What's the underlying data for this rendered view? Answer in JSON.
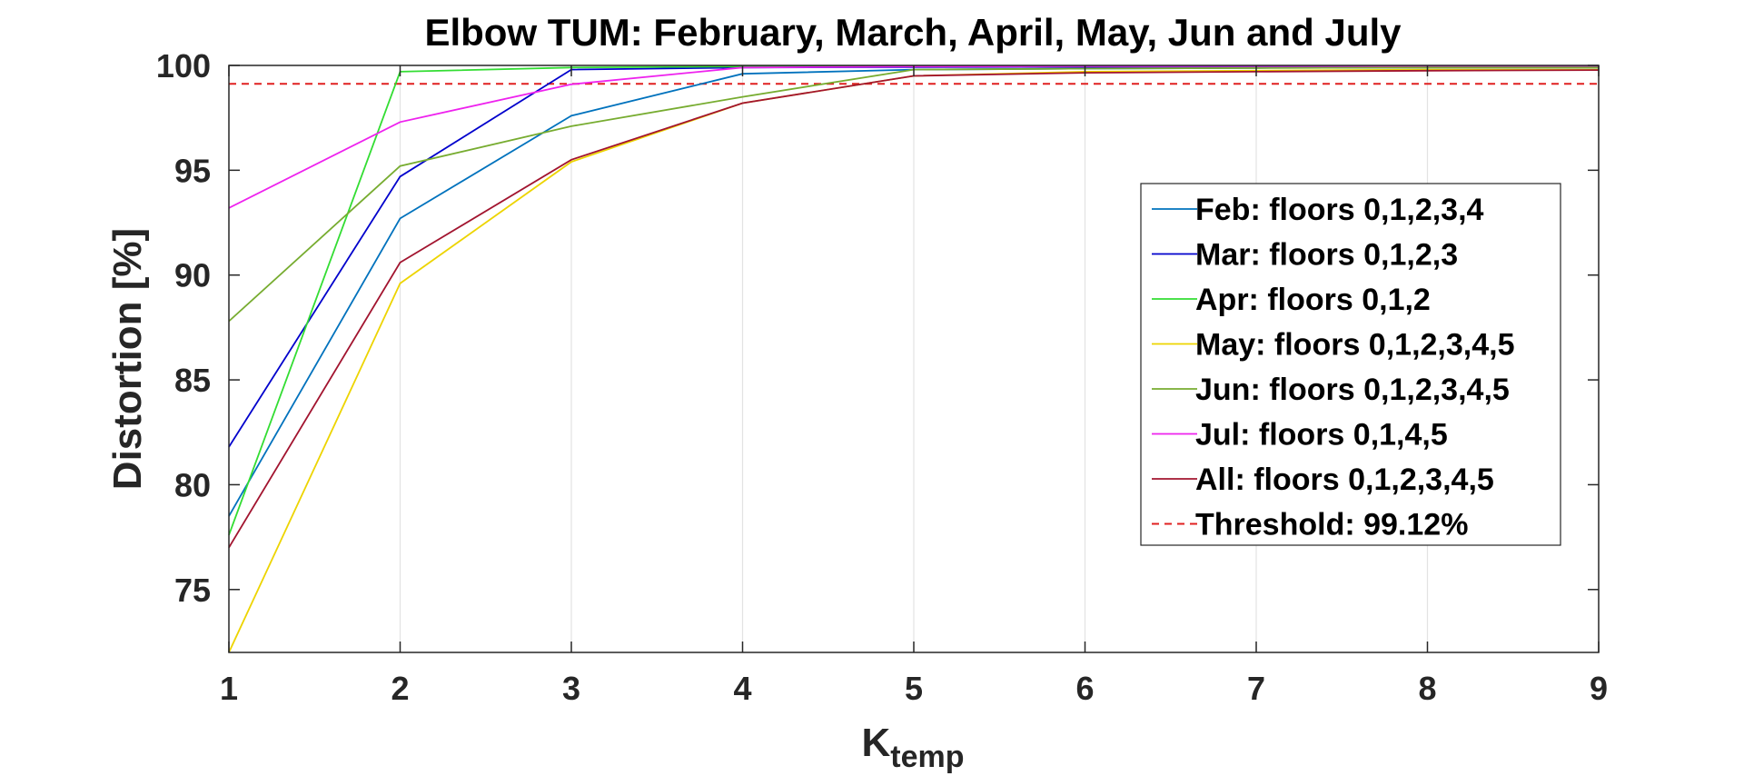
{
  "chart_data": {
    "type": "line",
    "title": "Elbow TUM: February, March, April, May, Jun and July",
    "xlabel": "K",
    "xlabel_sub": "temp",
    "ylabel": "Distortion [%]",
    "xlim": [
      1,
      9
    ],
    "ylim": [
      72,
      100
    ],
    "xticks": [
      "1",
      "2",
      "3",
      "4",
      "5",
      "6",
      "7",
      "8",
      "9"
    ],
    "yticks": [
      "75",
      "80",
      "85",
      "90",
      "95",
      "100"
    ],
    "grid": "vertical",
    "legend_position": "right",
    "x": [
      1,
      2,
      3,
      4,
      5,
      6,
      7,
      8,
      9
    ],
    "series": [
      {
        "name": "Feb: floors 0,1,2,3,4",
        "color": "#0072BD",
        "values": [
          78.5,
          92.7,
          97.6,
          99.6,
          99.8,
          99.85,
          99.88,
          99.9,
          99.9
        ]
      },
      {
        "name": "Mar: floors 0,1,2,3",
        "color": "#0000CC",
        "values": [
          81.8,
          94.7,
          99.8,
          99.9,
          99.92,
          99.93,
          99.94,
          99.95,
          99.95
        ]
      },
      {
        "name": "Apr: floors 0,1,2",
        "color": "#33DD33",
        "values": [
          77.6,
          99.7,
          99.9,
          99.95,
          99.96,
          99.97,
          99.97,
          99.98,
          99.98
        ]
      },
      {
        "name": "May: floors 0,1,2,3,4,5",
        "color": "#EDD400",
        "values": [
          72.0,
          89.6,
          95.4,
          98.2,
          99.5,
          99.7,
          99.75,
          99.8,
          99.8
        ]
      },
      {
        "name": "Jun: floors 0,1,2,3,4,5",
        "color": "#77AC30",
        "values": [
          87.8,
          95.2,
          97.1,
          98.5,
          99.8,
          99.85,
          99.88,
          99.9,
          99.9
        ]
      },
      {
        "name": "Jul: floors 0,1,4,5",
        "color": "#EE22EE",
        "values": [
          93.2,
          97.3,
          99.1,
          99.9,
          99.95,
          99.96,
          99.97,
          99.98,
          99.98
        ]
      },
      {
        "name": "All: floors 0,1,2,3,4,5",
        "color": "#A2142F",
        "values": [
          77.0,
          90.6,
          95.5,
          98.2,
          99.5,
          99.65,
          99.7,
          99.75,
          99.78
        ]
      }
    ],
    "threshold": {
      "name": "Threshold: 99.12%",
      "value": 99.12,
      "color": "#E02020",
      "style": "dashed"
    }
  }
}
